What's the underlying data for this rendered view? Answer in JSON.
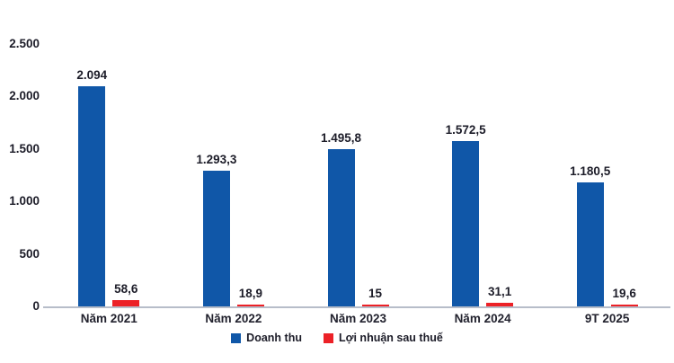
{
  "chart_data": {
    "type": "bar",
    "title": "",
    "xlabel": "",
    "ylabel": "",
    "categories": [
      "Năm 2021",
      "Năm 2022",
      "Năm 2023",
      "Năm 2024",
      "9T 2025"
    ],
    "series": [
      {
        "name": "Doanh thu",
        "color": "#1057a8",
        "values": [
          2094,
          1293.3,
          1495.8,
          1572.5,
          1180.5
        ],
        "value_labels": [
          "2.094",
          "1.293,3",
          "1.495,8",
          "1.572,5",
          "1.180,5"
        ]
      },
      {
        "name": "Lợi nhuận sau thuế",
        "color": "#ec2127",
        "values": [
          58.6,
          18.9,
          15,
          31.1,
          19.6
        ],
        "value_labels": [
          "58,6",
          "18,9",
          "15",
          "31,1",
          "19,6"
        ]
      }
    ],
    "ylim": [
      0,
      2500
    ],
    "yticks": [
      {
        "value": 0,
        "label": "0"
      },
      {
        "value": 500,
        "label": "500"
      },
      {
        "value": 1000,
        "label": "1.000"
      },
      {
        "value": 1500,
        "label": "1.500"
      },
      {
        "value": 2000,
        "label": "2.000"
      },
      {
        "value": 2500,
        "label": "2.500"
      }
    ],
    "grid": false,
    "legend_position": "bottom"
  },
  "colors": {
    "axis_line": "#b7bdc9",
    "text": "#1c1c28"
  }
}
